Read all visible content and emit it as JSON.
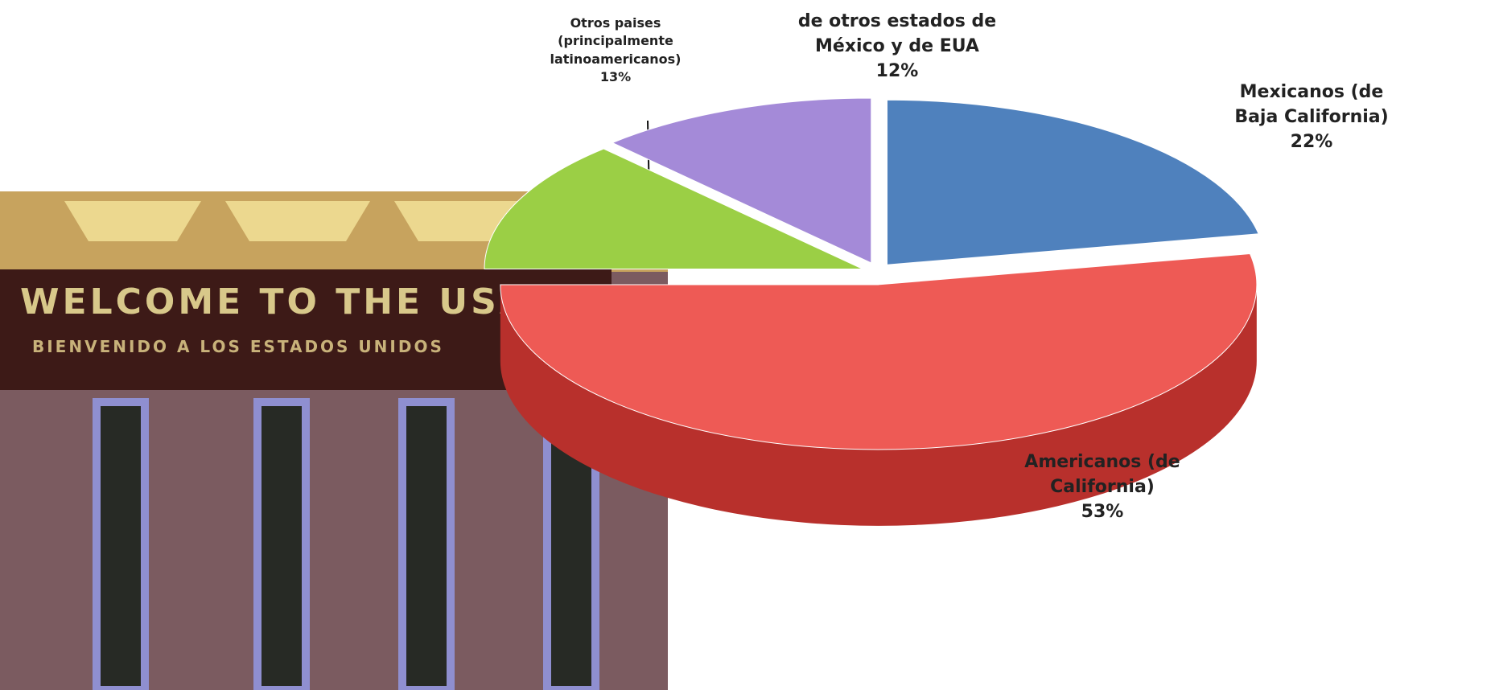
{
  "chart_data": {
    "type": "pie",
    "labels": [
      "Mexicanos (de Baja California)",
      "Americanos (de California)",
      "Otros paises (principalmente latinoamericanos)",
      "de otros estados de México y de EUA"
    ],
    "values": [
      22,
      53,
      13,
      12
    ],
    "value_labels": [
      "22%",
      "53%",
      "13%",
      "12%"
    ],
    "colors": [
      "#4f81bd",
      "#ee5a55",
      "#9bcf45",
      "#a48ad8"
    ],
    "side_colors": [
      "#2f5f99",
      "#b8302c",
      "#5f8f20",
      "#6a50a0"
    ]
  },
  "background_sign": [
    "WELCOME TO THE USA",
    "BIENVENIDO A LOS ESTADOS UNIDOS"
  ]
}
